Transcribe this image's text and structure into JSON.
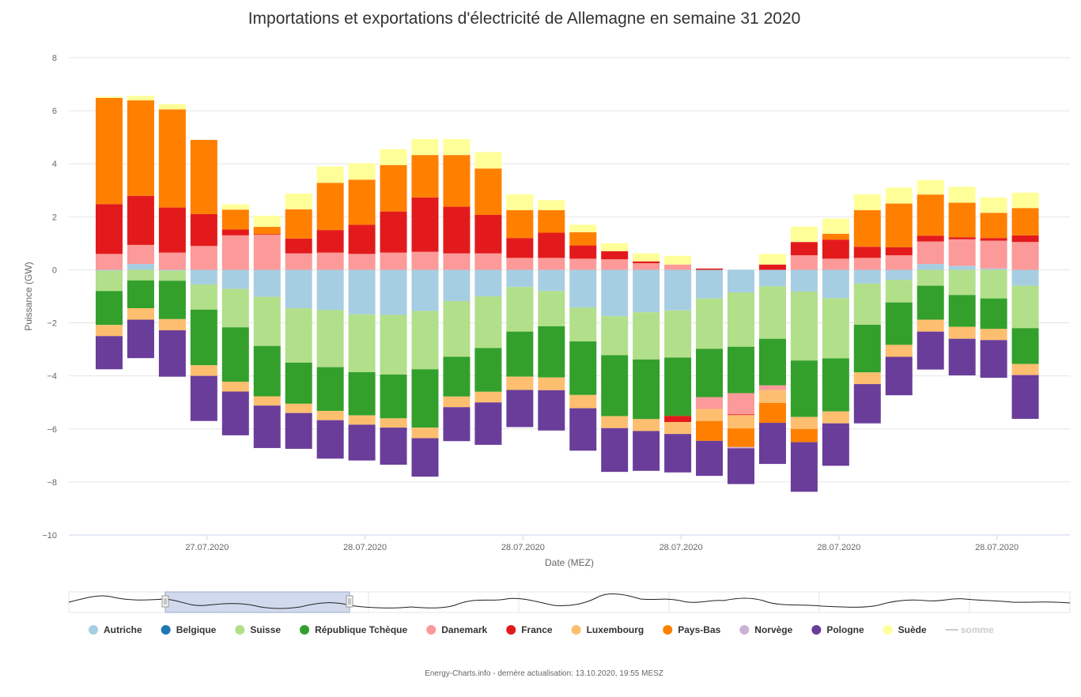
{
  "chart_data": {
    "type": "bar",
    "stacked": true,
    "title": "Importations et exportations d'électricité de Allemagne en semaine 31 2020",
    "xlabel": "Date (MEZ)",
    "ylabel": "Puissance (GW)",
    "ylim": [
      -10,
      8
    ],
    "yticks": [
      "8",
      "6",
      "4",
      "2",
      "0",
      "−2",
      "−4",
      "−6",
      "−8",
      "−10"
    ],
    "yticks_values": [
      8,
      6,
      4,
      2,
      0,
      -2,
      -4,
      -6,
      -8,
      -10
    ],
    "xtick_labels": [
      "27.07.2020",
      "28.07.2020",
      "28.07.2020",
      "28.07.2020",
      "28.07.2020",
      "28.07.2020"
    ],
    "xtick_bar_positions": [
      3.1,
      8.1,
      13.1,
      18.1,
      23.1,
      28.1
    ],
    "grid": true,
    "legend_position": "bottom",
    "credit": "Energy-Charts.info - dernère actualisation: 13.10.2020, 19:55 MESZ",
    "bar_count": 30,
    "series": [
      {
        "name": "Autriche",
        "color": "#a6cee3",
        "values": [
          -0.03,
          0.22,
          -0.03,
          -0.55,
          -0.72,
          -1.02,
          -1.45,
          -1.52,
          -1.68,
          -1.7,
          -1.55,
          -1.18,
          -1.0,
          -0.65,
          -0.8,
          -1.42,
          -1.75,
          -1.6,
          -1.53,
          -1.08,
          -0.85,
          -0.62,
          -0.82,
          -1.07,
          -0.52,
          -0.38,
          0.22,
          0.15,
          0.05,
          -0.6
        ]
      },
      {
        "name": "Belgique",
        "color": "#1f78b4",
        "values": [
          0,
          0,
          0,
          0,
          0,
          0,
          0,
          0,
          0,
          0,
          0,
          0,
          0,
          0,
          0,
          0,
          0,
          0,
          0,
          0,
          0,
          0,
          0,
          0,
          0,
          0,
          0,
          0,
          0,
          0
        ]
      },
      {
        "name": "Suisse",
        "color": "#b2df8a",
        "values": [
          -0.77,
          -0.4,
          -0.38,
          -0.95,
          -1.45,
          -1.85,
          -2.05,
          -2.15,
          -2.18,
          -2.25,
          -2.2,
          -2.1,
          -1.95,
          -1.68,
          -1.33,
          -1.28,
          -1.47,
          -1.78,
          -1.78,
          -1.9,
          -2.05,
          -1.98,
          -2.6,
          -2.27,
          -1.55,
          -0.85,
          -0.6,
          -0.95,
          -1.08,
          -1.6
        ]
      },
      {
        "name": "République Tchèque",
        "color": "#33a02c",
        "values": [
          -1.28,
          -1.05,
          -1.45,
          -2.1,
          -2.05,
          -1.9,
          -1.55,
          -1.65,
          -1.63,
          -1.65,
          -2.2,
          -1.5,
          -1.65,
          -1.7,
          -1.93,
          -2.02,
          -2.3,
          -2.25,
          -2.2,
          -1.82,
          -1.75,
          -1.76,
          -2.13,
          -2.0,
          -1.8,
          -1.6,
          -1.28,
          -1.2,
          -1.15,
          -1.35
        ]
      },
      {
        "name": "Danemark",
        "color": "#fb9a99",
        "values": [
          0.6,
          0.72,
          0.65,
          0.9,
          1.3,
          1.32,
          0.62,
          0.65,
          0.6,
          0.65,
          0.68,
          0.62,
          0.62,
          0.45,
          0.45,
          0.42,
          0.4,
          0.25,
          0.2,
          -0.45,
          -0.8,
          -0.18,
          0.55,
          0.42,
          0.45,
          0.55,
          0.85,
          1.0,
          1.05,
          1.05
        ]
      },
      {
        "name": "France",
        "color": "#e31a1c",
        "values": [
          1.88,
          1.85,
          1.7,
          1.2,
          0.22,
          0.02,
          0.56,
          0.85,
          1.1,
          1.55,
          2.05,
          1.76,
          1.45,
          0.75,
          0.95,
          0.5,
          0.3,
          0.07,
          -0.23,
          0.05,
          -0.03,
          0.2,
          0.5,
          0.72,
          0.42,
          0.3,
          0.22,
          0.08,
          0.1,
          0.25
        ]
      },
      {
        "name": "Luxembourg",
        "color": "#fdbf6f",
        "values": [
          -0.42,
          -0.43,
          -0.42,
          -0.4,
          -0.37,
          -0.35,
          -0.35,
          -0.35,
          -0.35,
          -0.35,
          -0.4,
          -0.4,
          -0.4,
          -0.5,
          -0.48,
          -0.5,
          -0.45,
          -0.45,
          -0.45,
          -0.45,
          -0.5,
          -0.48,
          -0.45,
          -0.45,
          -0.44,
          -0.45,
          -0.45,
          -0.45,
          -0.42,
          -0.42
        ]
      },
      {
        "name": "Pays-Bas",
        "color": "#ff7f00",
        "values": [
          4.0,
          3.6,
          3.7,
          2.8,
          0.75,
          0.28,
          1.1,
          1.78,
          1.7,
          1.75,
          1.6,
          1.95,
          1.75,
          1.05,
          0.85,
          0.5,
          0,
          0,
          0,
          -0.75,
          -0.7,
          -0.75,
          -0.5,
          0.22,
          1.38,
          1.65,
          1.55,
          1.3,
          0.95,
          1.03
        ]
      },
      {
        "name": "Norvège",
        "color": "#cab2d6",
        "values": [
          0,
          0,
          0,
          0,
          0,
          0,
          0,
          0,
          0,
          0,
          0,
          0,
          0,
          0,
          0,
          0,
          0,
          0,
          0,
          0,
          -0.05,
          0,
          0,
          0,
          0,
          0,
          0,
          0,
          0,
          0
        ]
      },
      {
        "name": "Pologne",
        "color": "#6a3d9a",
        "values": [
          -1.25,
          -1.45,
          -1.75,
          -1.7,
          -1.65,
          -1.6,
          -1.35,
          -1.45,
          -1.35,
          -1.4,
          -1.45,
          -1.28,
          -1.6,
          -1.4,
          -1.52,
          -1.6,
          -1.65,
          -1.5,
          -1.45,
          -1.32,
          -1.35,
          -1.55,
          -1.87,
          -1.6,
          -1.48,
          -1.45,
          -1.43,
          -1.38,
          -1.42,
          -1.65
        ]
      },
      {
        "name": "Suède",
        "color": "#ffff99",
        "values": [
          0.05,
          0.17,
          0.2,
          0.0,
          0.2,
          0.42,
          0.6,
          0.62,
          0.62,
          0.6,
          0.6,
          0.6,
          0.62,
          0.6,
          0.38,
          0.28,
          0.3,
          0.3,
          0.33,
          0.0,
          0.0,
          0.4,
          0.58,
          0.57,
          0.6,
          0.6,
          0.55,
          0.6,
          0.58,
          0.58
        ]
      }
    ],
    "sum_series": {
      "name": "somme",
      "visible": false
    }
  }
}
